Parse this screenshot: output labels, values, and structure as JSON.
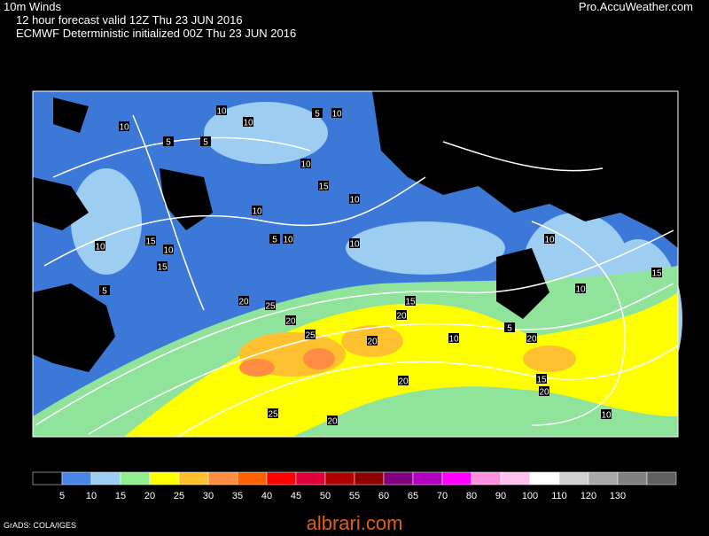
{
  "header": {
    "title": "10m Winds",
    "valid": "12 hour forecast valid 12Z Thu 23 JUN 2016",
    "model": "ECMWF Deterministic initialized 00Z Thu 23 JUN 2016",
    "source": "Pro.AccuWeather.com"
  },
  "map": {
    "wind_labels": [
      "10",
      "5",
      "10",
      "5",
      "10",
      "5",
      "10",
      "10",
      "15",
      "10",
      "10",
      "5",
      "10",
      "15",
      "10",
      "5",
      "10",
      "15",
      "20",
      "25",
      "25",
      "20",
      "20",
      "20",
      "15",
      "20",
      "25",
      "20",
      "20",
      "10",
      "15",
      "10",
      "15",
      "20",
      "10",
      "5",
      "10",
      "10"
    ]
  },
  "colorbar": {
    "levels": [
      5,
      10,
      15,
      20,
      25,
      30,
      35,
      40,
      45,
      50,
      55,
      60,
      65,
      70,
      80,
      90,
      100,
      110,
      120,
      130
    ],
    "colors": [
      "#000000",
      "#4a86e8",
      "#9dcdf0",
      "#90ee90",
      "#ffff00",
      "#ffc030",
      "#ff8c40",
      "#ff6000",
      "#ff0000",
      "#e0003c",
      "#b00000",
      "#900000",
      "#800080",
      "#b000c0",
      "#ff00ff",
      "#ff90e0",
      "#ffc0f0",
      "#ffffff",
      "#d0d0d0",
      "#a8a8a8",
      "#808080",
      "#606060"
    ]
  },
  "footer": {
    "credit": "GrADS: COLA/IGES",
    "watermark": "albrari.com"
  }
}
